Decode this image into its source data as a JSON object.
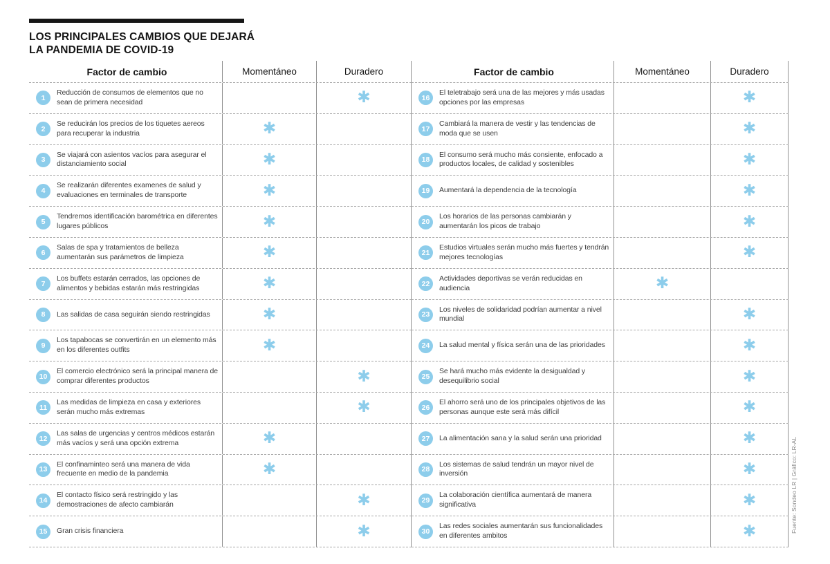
{
  "title": {
    "line1": "LOS PRINCIPALES CAMBIOS QUE DEJARÁ",
    "line2": "LA PANDEMIA DE COVID-19"
  },
  "header": {
    "factor": "Factor de cambio",
    "momentaneo": "Momentáneo",
    "duradero": "Duradero"
  },
  "marks": {
    "checked": "✱"
  },
  "colors": {
    "accent": "#8DCDEB"
  },
  "source_credit": "Fuente: Sondeo LR | Gráfico: LR-AL",
  "chart_data": {
    "type": "table",
    "title": "LOS PRINCIPALES CAMBIOS QUE DEJARÁ LA PANDEMIA DE COVID-19",
    "columns": [
      "Factor de cambio",
      "Momentáneo",
      "Duradero"
    ],
    "rows": [
      {
        "num": "1",
        "factor": "Reducción de consumos de elementos que no sean de primera necesidad",
        "momentaneo": false,
        "duradero": true
      },
      {
        "num": "2",
        "factor": "Se reducirán los precios de los tiquetes aereos para recuperar la industria",
        "momentaneo": true,
        "duradero": false
      },
      {
        "num": "3",
        "factor": "Se viajará con asientos vacíos para asegurar el distanciamiento social",
        "momentaneo": true,
        "duradero": false
      },
      {
        "num": "4",
        "factor": "Se realizarán diferentes examenes de salud y evaluaciones en terminales de transporte",
        "momentaneo": true,
        "duradero": false
      },
      {
        "num": "5",
        "factor": "Tendremos identificación barométrica en diferentes lugares públicos",
        "momentaneo": true,
        "duradero": false
      },
      {
        "num": "6",
        "factor": "Salas de spa y tratamientos de belleza aumentarán sus parámetros de limpieza",
        "momentaneo": true,
        "duradero": false
      },
      {
        "num": "7",
        "factor": "Los buffets estarán cerrados, las opciones de alimentos y bebidas estarán más restringidas",
        "momentaneo": true,
        "duradero": false
      },
      {
        "num": "8",
        "factor": "Las salidas de casa seguirán siendo restringidas",
        "momentaneo": true,
        "duradero": false
      },
      {
        "num": "9",
        "factor": "Los tapabocas se convertirán en un elemento más en los diferentes outfits",
        "momentaneo": true,
        "duradero": false
      },
      {
        "num": "10",
        "factor": "El comercio electrónico será la principal manera de comprar diferentes productos",
        "momentaneo": false,
        "duradero": true
      },
      {
        "num": "11",
        "factor": "Las medidas de limpieza en casa y exteriores serán mucho más extremas",
        "momentaneo": false,
        "duradero": true
      },
      {
        "num": "12",
        "factor": "Las salas de urgencias y centros médicos estarán más vacíos y será una opción extrema",
        "momentaneo": true,
        "duradero": false
      },
      {
        "num": "13",
        "factor": "El confinaminteo será una manera de vida frecuente en medio de la pandemia",
        "momentaneo": true,
        "duradero": false
      },
      {
        "num": "14",
        "factor": "El contacto físico será restringido y las demostraciones de afecto cambiarán",
        "momentaneo": false,
        "duradero": true
      },
      {
        "num": "15",
        "factor": "Gran crisis financiera",
        "momentaneo": false,
        "duradero": true
      },
      {
        "num": "16",
        "factor": "El teletrabajo será una de las mejores y más usadas opciones por las empresas",
        "momentaneo": false,
        "duradero": true
      },
      {
        "num": "17",
        "factor": "Cambiará la manera de vestir y las tendencias de moda que se usen",
        "momentaneo": false,
        "duradero": true
      },
      {
        "num": "18",
        "factor": "El consumo será mucho más consiente, enfocado a productos locales, de calidad y sostenibles",
        "momentaneo": false,
        "duradero": true
      },
      {
        "num": "19",
        "factor": "Aumentará la dependencia de la tecnología",
        "momentaneo": false,
        "duradero": true
      },
      {
        "num": "20",
        "factor": "Los horarios de las personas cambiarán y aumentarán los picos de trabajo",
        "momentaneo": false,
        "duradero": true
      },
      {
        "num": "21",
        "factor": "Estudios virtuales serán mucho más fuertes y tendrán mejores tecnologías",
        "momentaneo": false,
        "duradero": true
      },
      {
        "num": "22",
        "factor": "Actividades deportivas se verán reducidas en audiencia",
        "momentaneo": true,
        "duradero": false
      },
      {
        "num": "23",
        "factor": "Los niveles de solidaridad podrían aumentar a nivel mundial",
        "momentaneo": false,
        "duradero": true
      },
      {
        "num": "24",
        "factor": "La salud mental y física serán una de las prioridades",
        "momentaneo": false,
        "duradero": true
      },
      {
        "num": "25",
        "factor": "Se hará mucho más evidente la desigualdad y desequilibrio social",
        "momentaneo": false,
        "duradero": true
      },
      {
        "num": "26",
        "factor": "El ahorro será uno de los principales objetivos de las personas aunque este será más difícil",
        "momentaneo": false,
        "duradero": true
      },
      {
        "num": "27",
        "factor": "La alimentación sana y la salud serán una prioridad",
        "momentaneo": false,
        "duradero": true
      },
      {
        "num": "28",
        "factor": "Los sistemas de salud tendrán un mayor nivel de inversión",
        "momentaneo": false,
        "duradero": true
      },
      {
        "num": "29",
        "factor": "La colaboración científica aumentará de manera significativa",
        "momentaneo": false,
        "duradero": true
      },
      {
        "num": "30",
        "factor": "Las redes sociales aumentarán sus funcionalidades en diferentes ambitos",
        "momentaneo": false,
        "duradero": true
      }
    ]
  }
}
